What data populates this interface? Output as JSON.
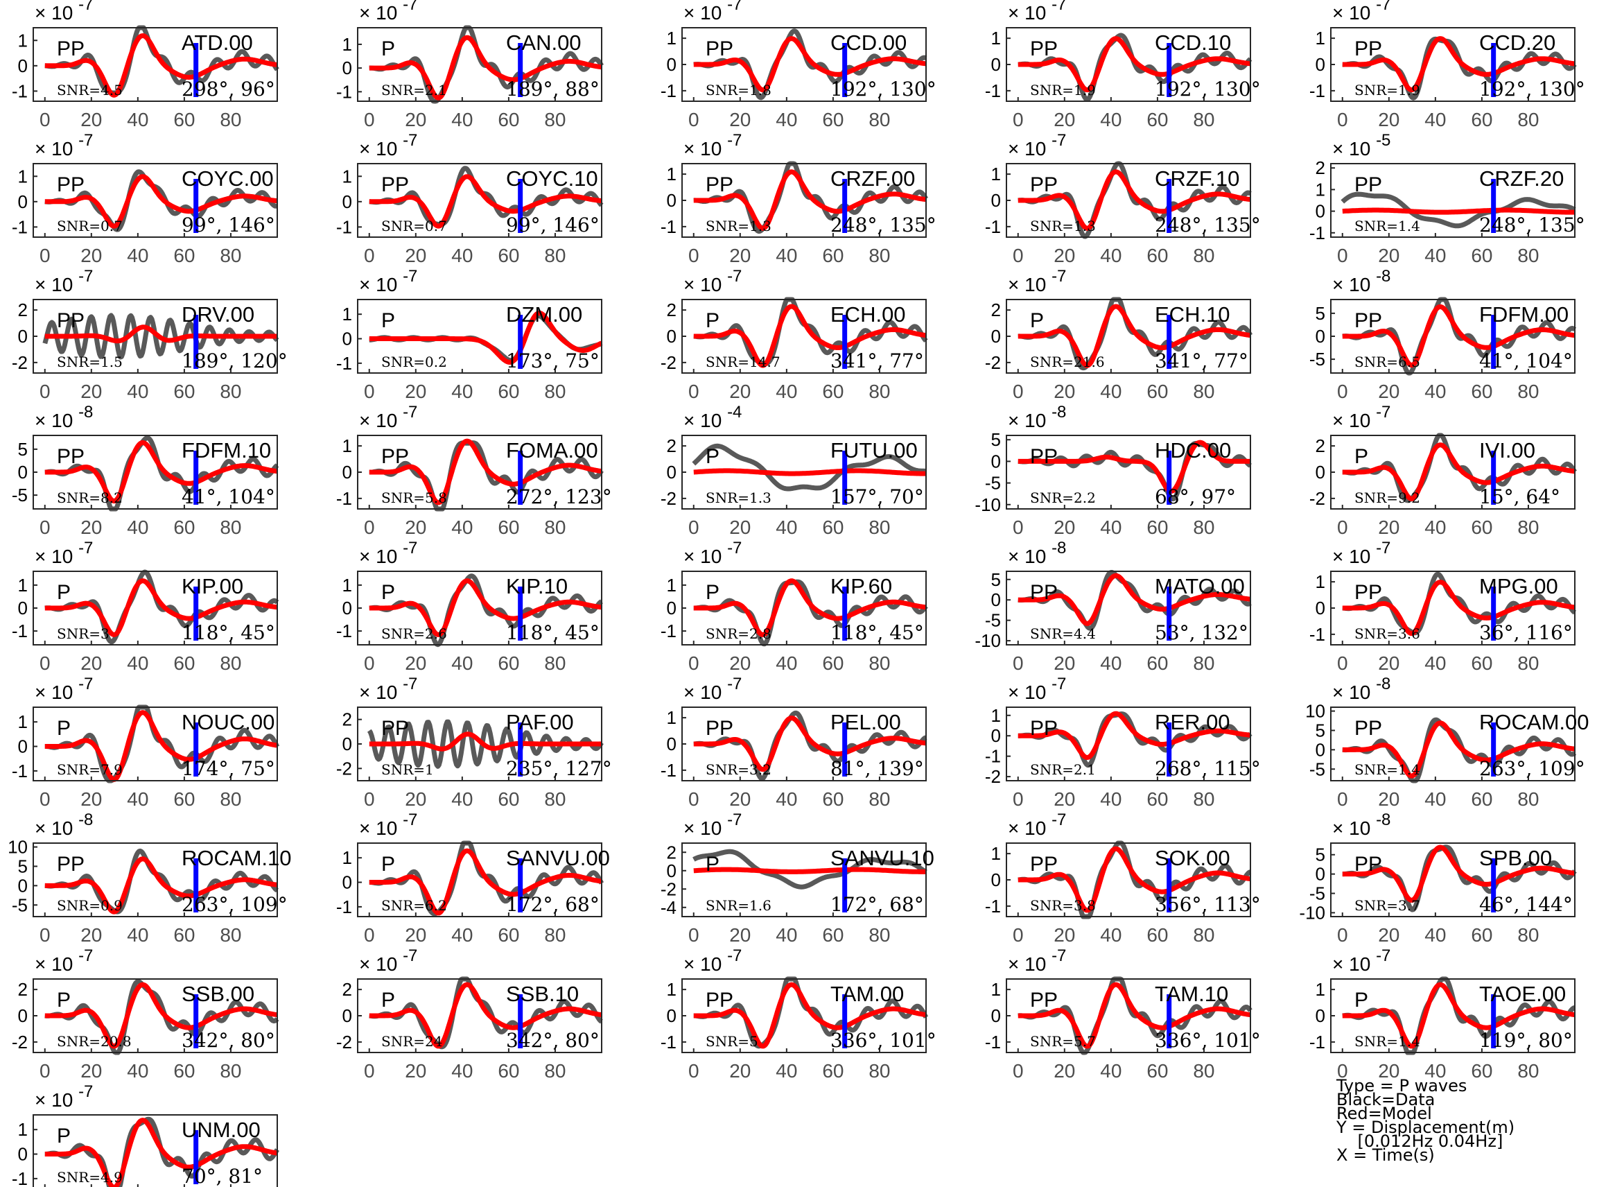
{
  "chart_data": {
    "type": "line",
    "layout": {
      "columns": 5
    },
    "x_ticks": [
      0,
      20,
      40,
      60,
      80
    ],
    "xlim": [
      -5,
      100
    ],
    "colors": {
      "data": "#595959",
      "model": "#ff0000",
      "marker": "#0000ff",
      "axes": "#262626",
      "ticks": "#4d4d4d"
    },
    "legend": {
      "type": "Type = P waves",
      "black": "Black=Data",
      "red": "Red=Model",
      "y": "Y = Displacement(m)",
      "band": "    [0.012Hz 0.04Hz]",
      "x": "X = Time(s)"
    },
    "panels": [
      {
        "station": "ATD.00",
        "phase": "PP",
        "snr": "SNR=4.5",
        "angles": "298°, 96°",
        "exponent": "-7",
        "yticks": [
          1,
          0,
          -1
        ],
        "ylim": [
          -1.4,
          1.5
        ],
        "amp": 1.2,
        "seed": 1
      },
      {
        "station": "CAN.00",
        "phase": "P",
        "snr": "SNR=2.1",
        "angles": "189°, 88°",
        "exponent": "-7",
        "yticks": [
          1,
          0,
          -1
        ],
        "ylim": [
          -1.4,
          1.7
        ],
        "amp": 1.3,
        "seed": 2
      },
      {
        "station": "CCD.00",
        "phase": "PP",
        "snr": "SNR=1.8",
        "angles": "192°, 130°",
        "exponent": "-7",
        "yticks": [
          1,
          0,
          -1
        ],
        "ylim": [
          -1.4,
          1.4
        ],
        "amp": 1.0,
        "seed": 3
      },
      {
        "station": "CCD.10",
        "phase": "PP",
        "snr": "SNR=1.9",
        "angles": "192°, 130°",
        "exponent": "-7",
        "yticks": [
          1,
          0,
          -1
        ],
        "ylim": [
          -1.4,
          1.4
        ],
        "amp": 1.0,
        "seed": 4
      },
      {
        "station": "CCD.20",
        "phase": "PP",
        "snr": "SNR=1.9",
        "angles": "192°, 130°",
        "exponent": "-7",
        "yticks": [
          1,
          0,
          -1
        ],
        "ylim": [
          -1.4,
          1.4
        ],
        "amp": 1.0,
        "seed": 5
      },
      {
        "station": "COYC.00",
        "phase": "PP",
        "snr": "SNR=0.7",
        "angles": "99°, 146°",
        "exponent": "-7",
        "yticks": [
          1,
          0,
          -1
        ],
        "ylim": [
          -1.4,
          1.5
        ],
        "amp": 1.0,
        "seed": 6
      },
      {
        "station": "COYC.10",
        "phase": "PP",
        "snr": "SNR=0.7",
        "angles": "99°, 146°",
        "exponent": "-7",
        "yticks": [
          1,
          0,
          -1
        ],
        "ylim": [
          -1.4,
          1.5
        ],
        "amp": 1.0,
        "seed": 7
      },
      {
        "station": "CRZF.00",
        "phase": "PP",
        "snr": "SNR=1.3",
        "angles": "248°, 135°",
        "exponent": "-7",
        "yticks": [
          1,
          0,
          -1
        ],
        "ylim": [
          -1.4,
          1.4
        ],
        "amp": 1.1,
        "seed": 8
      },
      {
        "station": "CRZF.10",
        "phase": "PP",
        "snr": "SNR=1.3",
        "angles": "248°, 135°",
        "exponent": "-7",
        "yticks": [
          1,
          0,
          -1
        ],
        "ylim": [
          -1.4,
          1.4
        ],
        "amp": 1.1,
        "seed": 9
      },
      {
        "station": "CRZF.20",
        "phase": "PP",
        "snr": "SNR=1.4",
        "angles": "248°, 135°",
        "exponent": "-5",
        "yticks": [
          2,
          1,
          0,
          -1
        ],
        "ylim": [
          -1.2,
          2.2
        ],
        "amp": 1.0,
        "seed": 10,
        "kind": "broad"
      },
      {
        "station": "DRV.00",
        "phase": "PP",
        "snr": "SNR=1.5",
        "angles": "189°, 120°",
        "exponent": "-7",
        "yticks": [
          2,
          0,
          -2
        ],
        "ylim": [
          -2.8,
          2.8
        ],
        "amp": 2.0,
        "seed": 11,
        "kind": "osc"
      },
      {
        "station": "DZM.00",
        "phase": "P",
        "snr": "SNR=0.2",
        "angles": "173°, 75°",
        "exponent": "-7",
        "yticks": [
          1,
          0,
          -1
        ],
        "ylim": [
          -1.4,
          1.6
        ],
        "amp": 1.2,
        "seed": 12,
        "kind": "late"
      },
      {
        "station": "ECH.00",
        "phase": "P",
        "snr": "SNR=14.7",
        "angles": "341°, 77°",
        "exponent": "-7",
        "yticks": [
          2,
          0,
          -2
        ],
        "ylim": [
          -2.8,
          2.8
        ],
        "amp": 2.3,
        "seed": 13
      },
      {
        "station": "ECH.10",
        "phase": "P",
        "snr": "SNR=21.6",
        "angles": "341°, 77°",
        "exponent": "-7",
        "yticks": [
          2,
          0,
          -2
        ],
        "ylim": [
          -2.8,
          2.8
        ],
        "amp": 2.3,
        "seed": 14
      },
      {
        "station": "FDFM.00",
        "phase": "PP",
        "snr": "SNR=6.5",
        "angles": "41°, 104°",
        "exponent": "-8",
        "yticks": [
          5,
          0,
          -5
        ],
        "ylim": [
          -8,
          8
        ],
        "amp": 6.5,
        "seed": 15
      },
      {
        "station": "FDFM.10",
        "phase": "PP",
        "snr": "SNR=8.2",
        "angles": "41°, 104°",
        "exponent": "-8",
        "yticks": [
          5,
          0,
          -5
        ],
        "ylim": [
          -8,
          8
        ],
        "amp": 6.5,
        "seed": 16
      },
      {
        "station": "FOMA.00",
        "phase": "PP",
        "snr": "SNR=5.8",
        "angles": "272°, 123°",
        "exponent": "-7",
        "yticks": [
          1,
          0,
          -1
        ],
        "ylim": [
          -1.4,
          1.4
        ],
        "amp": 1.2,
        "seed": 17
      },
      {
        "station": "FUTU.00",
        "phase": "P",
        "snr": "SNR=1.3",
        "angles": "157°, 70°",
        "exponent": "-4",
        "yticks": [
          2,
          0,
          -2
        ],
        "ylim": [
          -2.8,
          2.8
        ],
        "amp": 2.2,
        "seed": 18,
        "kind": "broad"
      },
      {
        "station": "HDC.00",
        "phase": "PP",
        "snr": "SNR=2.2",
        "angles": "68°, 97°",
        "exponent": "-8",
        "yticks": [
          5,
          0,
          -5,
          -10
        ],
        "ylim": [
          -11,
          6
        ],
        "amp": 5.0,
        "seed": 19,
        "kind": "late2"
      },
      {
        "station": "IVI.00",
        "phase": "P",
        "snr": "SNR=9.2",
        "angles": "15°, 64°",
        "exponent": "-7",
        "yticks": [
          2,
          0,
          -2
        ],
        "ylim": [
          -2.8,
          2.8
        ],
        "amp": 2.1,
        "seed": 20
      },
      {
        "station": "KIP.00",
        "phase": "P",
        "snr": "SNR=3",
        "angles": "118°, 45°",
        "exponent": "-7",
        "yticks": [
          1,
          0,
          -1
        ],
        "ylim": [
          -1.6,
          1.6
        ],
        "amp": 1.2,
        "seed": 21
      },
      {
        "station": "KIP.10",
        "phase": "P",
        "snr": "SNR=2.6",
        "angles": "118°, 45°",
        "exponent": "-7",
        "yticks": [
          1,
          0,
          -1
        ],
        "ylim": [
          -1.6,
          1.6
        ],
        "amp": 1.2,
        "seed": 22
      },
      {
        "station": "KIP.60",
        "phase": "P",
        "snr": "SNR=2.8",
        "angles": "118°, 45°",
        "exponent": "-7",
        "yticks": [
          1,
          0,
          -1
        ],
        "ylim": [
          -1.6,
          1.6
        ],
        "amp": 1.2,
        "seed": 23
      },
      {
        "station": "MATO.00",
        "phase": "PP",
        "snr": "SNR=4.4",
        "angles": "53°, 132°",
        "exponent": "-8",
        "yticks": [
          5,
          0,
          -5,
          -10
        ],
        "ylim": [
          -11,
          7
        ],
        "amp": 6.0,
        "seed": 24
      },
      {
        "station": "MPG.00",
        "phase": "PP",
        "snr": "SNR=3.6",
        "angles": "36°, 116°",
        "exponent": "-7",
        "yticks": [
          1,
          0,
          -1
        ],
        "ylim": [
          -1.4,
          1.4
        ],
        "amp": 1.0,
        "seed": 25
      },
      {
        "station": "NOUC.00",
        "phase": "P",
        "snr": "SNR=7.9",
        "angles": "174°, 75°",
        "exponent": "-7",
        "yticks": [
          1,
          0,
          -1
        ],
        "ylim": [
          -1.4,
          1.6
        ],
        "amp": 1.4,
        "seed": 26
      },
      {
        "station": "PAF.00",
        "phase": "PP",
        "snr": "SNR=1",
        "angles": "235°, 127°",
        "exponent": "-7",
        "yticks": [
          2,
          0,
          -2
        ],
        "ylim": [
          -3,
          3
        ],
        "amp": 2.3,
        "seed": 27,
        "kind": "osc"
      },
      {
        "station": "PEL.00",
        "phase": "PP",
        "snr": "SNR=3.2",
        "angles": "81°, 139°",
        "exponent": "-7",
        "yticks": [
          1,
          0,
          -1
        ],
        "ylim": [
          -1.4,
          1.4
        ],
        "amp": 1.0,
        "seed": 28
      },
      {
        "station": "RER.00",
        "phase": "PP",
        "snr": "SNR=2.1",
        "angles": "268°, 115°",
        "exponent": "-7",
        "yticks": [
          1,
          0,
          -1,
          -2
        ],
        "ylim": [
          -2.2,
          1.4
        ],
        "amp": 1.1,
        "seed": 29
      },
      {
        "station": "ROCAM.00",
        "phase": "PP",
        "snr": "SNR=1.4",
        "angles": "263°, 109°",
        "exponent": "-8",
        "yticks": [
          10,
          5,
          0,
          -5
        ],
        "ylim": [
          -8,
          11
        ],
        "amp": 7.0,
        "seed": 30
      },
      {
        "station": "ROCAM.10",
        "phase": "PP",
        "snr": "SNR=0.9",
        "angles": "263°, 109°",
        "exponent": "-8",
        "yticks": [
          10,
          5,
          0,
          -5
        ],
        "ylim": [
          -8,
          11
        ],
        "amp": 7.0,
        "seed": 31
      },
      {
        "station": "SANVU.00",
        "phase": "P",
        "snr": "SNR=6.2",
        "angles": "172°, 68°",
        "exponent": "-7",
        "yticks": [
          1,
          0,
          -1
        ],
        "ylim": [
          -1.4,
          1.6
        ],
        "amp": 1.3,
        "seed": 32
      },
      {
        "station": "SANVU.10",
        "phase": "P",
        "snr": "SNR=1.6",
        "angles": "172°, 68°",
        "exponent": "-7",
        "yticks": [
          2,
          0,
          -2,
          -4
        ],
        "ylim": [
          -5,
          3
        ],
        "amp": 2.5,
        "seed": 33,
        "kind": "broad"
      },
      {
        "station": "SOK.00",
        "phase": "PP",
        "snr": "SNR=3.8",
        "angles": "356°, 113°",
        "exponent": "-7",
        "yticks": [
          1,
          0,
          -1
        ],
        "ylim": [
          -1.4,
          1.4
        ],
        "amp": 1.2,
        "seed": 34
      },
      {
        "station": "SPB.00",
        "phase": "PP",
        "snr": "SNR=3.7",
        "angles": "46°, 144°",
        "exponent": "-8",
        "yticks": [
          5,
          0,
          -5,
          -10
        ],
        "ylim": [
          -11,
          8
        ],
        "amp": 7.0,
        "seed": 35
      },
      {
        "station": "SSB.00",
        "phase": "P",
        "snr": "SNR=20.8",
        "angles": "342°, 80°",
        "exponent": "-7",
        "yticks": [
          2,
          0,
          -2
        ],
        "ylim": [
          -2.8,
          2.8
        ],
        "amp": 2.4,
        "seed": 36
      },
      {
        "station": "SSB.10",
        "phase": "P",
        "snr": "SNR=24",
        "angles": "342°, 80°",
        "exponent": "-7",
        "yticks": [
          2,
          0,
          -2
        ],
        "ylim": [
          -2.8,
          2.8
        ],
        "amp": 2.4,
        "seed": 37
      },
      {
        "station": "TAM.00",
        "phase": "PP",
        "snr": "SNR=5",
        "angles": "336°, 101°",
        "exponent": "-7",
        "yticks": [
          1,
          0,
          -1
        ],
        "ylim": [
          -1.4,
          1.4
        ],
        "amp": 1.2,
        "seed": 38
      },
      {
        "station": "TAM.10",
        "phase": "PP",
        "snr": "SNR=5.7",
        "angles": "336°, 101°",
        "exponent": "-7",
        "yticks": [
          1,
          0,
          -1
        ],
        "ylim": [
          -1.4,
          1.4
        ],
        "amp": 1.2,
        "seed": 39
      },
      {
        "station": "TAOE.00",
        "phase": "P",
        "snr": "SNR=1.4",
        "angles": "119°, 80°",
        "exponent": "-7",
        "yticks": [
          1,
          0,
          -1
        ],
        "ylim": [
          -1.4,
          1.4
        ],
        "amp": 1.2,
        "seed": 40
      },
      {
        "station": "UNM.00",
        "phase": "P",
        "snr": "SNR=4.9",
        "angles": "70°, 81°",
        "exponent": "-7",
        "yticks": [
          1,
          0,
          -1
        ],
        "ylim": [
          -1.4,
          1.6
        ],
        "amp": 1.4,
        "seed": 41
      }
    ]
  }
}
